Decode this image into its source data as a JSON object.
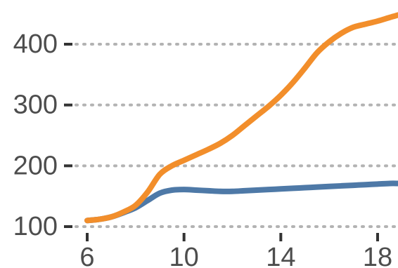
{
  "chart_data": {
    "type": "line",
    "xlabel": "",
    "ylabel": "",
    "xlim": [
      6,
      18.85
    ],
    "ylim": [
      100,
      450
    ],
    "x_ticks": [
      6,
      10,
      14,
      18
    ],
    "y_ticks": [
      100,
      200,
      300,
      400
    ],
    "x_tick_labels": [
      "6",
      "10",
      "14",
      "18"
    ],
    "y_tick_labels": [
      "100",
      "200",
      "300",
      "400"
    ],
    "grid": "horizontal dotted",
    "legend": "none",
    "series": [
      {
        "color": "#f28e2b",
        "x": [
          6,
          6.5,
          7,
          7.5,
          8,
          8.5,
          9,
          9.5,
          10,
          10.5,
          11,
          11.5,
          12,
          12.5,
          13,
          13.5,
          14,
          14.5,
          15,
          15.5,
          16,
          16.5,
          17,
          17.5,
          18,
          18.5,
          18.85
        ],
        "y": [
          110,
          112,
          116,
          124,
          135,
          157,
          186,
          200,
          209,
          218,
          227,
          237,
          250,
          266,
          282,
          298,
          316,
          337,
          361,
          386,
          404,
          418,
          428,
          433,
          438,
          444,
          448
        ]
      },
      {
        "color": "#4e79a7",
        "x": [
          6,
          6.5,
          7,
          7.5,
          8,
          8.5,
          9,
          9.5,
          10,
          10.5,
          11,
          11.5,
          12,
          12.5,
          13,
          13.5,
          14,
          14.5,
          15,
          15.5,
          16,
          16.5,
          17,
          17.5,
          18,
          18.5,
          18.85
        ],
        "y": [
          110,
          112,
          116,
          123,
          131,
          143,
          155,
          160,
          161,
          160,
          159,
          158,
          158,
          159,
          160,
          161,
          162,
          163,
          164,
          165,
          166,
          167,
          168,
          169,
          170,
          171,
          171
        ]
      }
    ]
  }
}
